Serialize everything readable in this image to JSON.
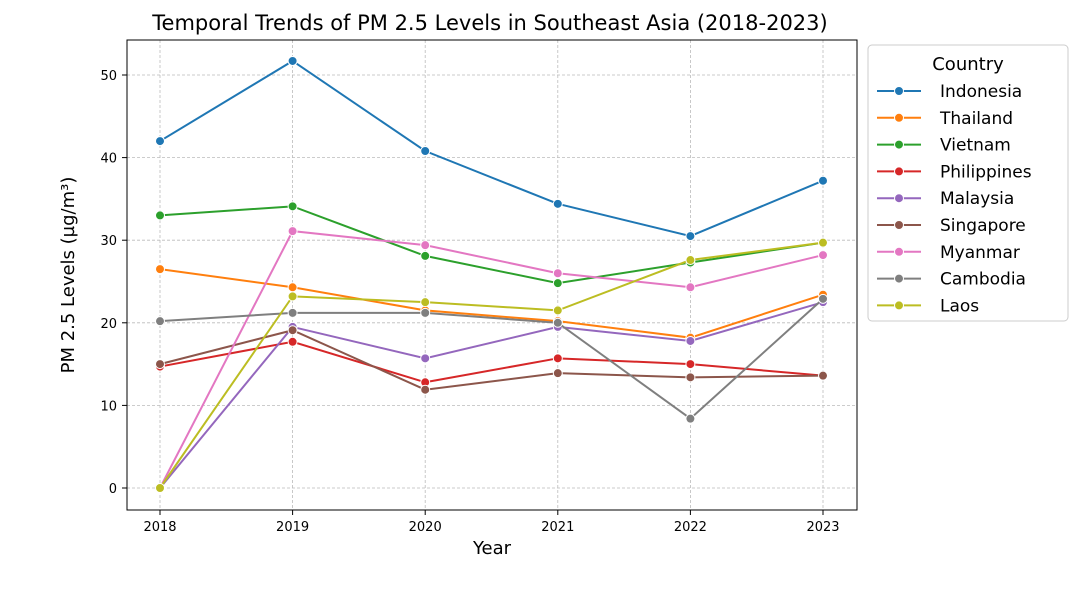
{
  "chart_data": {
    "type": "line",
    "title": "Temporal Trends of PM 2.5 Levels in Southeast Asia (2018-2023)",
    "xlabel": "Year",
    "ylabel": "PM 2.5 Levels (µg/m³)",
    "x": [
      2018,
      2019,
      2020,
      2021,
      2022,
      2023
    ],
    "x_ticks": [
      "2018",
      "2019",
      "2020",
      "2021",
      "2022",
      "2023"
    ],
    "y_ticks": [
      "0",
      "10",
      "20",
      "30",
      "40",
      "50"
    ],
    "ylim": [
      -2.7,
      54.2
    ],
    "grid": true,
    "legend": {
      "title": "Country",
      "placement": "outside-right"
    },
    "series": [
      {
        "name": "Indonesia",
        "color": "#1f77b4",
        "values": [
          42.0,
          51.7,
          40.8,
          34.4,
          30.5,
          37.2
        ]
      },
      {
        "name": "Thailand",
        "color": "#ff7f0e",
        "values": [
          26.5,
          24.3,
          21.5,
          20.2,
          18.2,
          23.4
        ]
      },
      {
        "name": "Vietnam",
        "color": "#2ca02c",
        "values": [
          33.0,
          34.1,
          28.1,
          24.8,
          27.3,
          29.7
        ]
      },
      {
        "name": "Philippines",
        "color": "#d62728",
        "values": [
          14.7,
          17.7,
          12.8,
          15.7,
          15.0,
          13.6
        ]
      },
      {
        "name": "Malaysia",
        "color": "#9467bd",
        "values": [
          0,
          19.5,
          15.7,
          19.5,
          17.8,
          22.5
        ]
      },
      {
        "name": "Singapore",
        "color": "#8c564b",
        "values": [
          15.0,
          19.1,
          11.9,
          13.9,
          13.4,
          13.6
        ]
      },
      {
        "name": "Myanmar",
        "color": "#e377c2",
        "values": [
          0,
          31.1,
          29.4,
          26.0,
          24.3,
          28.2
        ]
      },
      {
        "name": "Cambodia",
        "color": "#7f7f7f",
        "values": [
          20.2,
          21.2,
          21.2,
          20.0,
          8.4,
          22.9
        ]
      },
      {
        "name": "Laos",
        "color": "#bcbd22",
        "values": [
          0,
          23.2,
          22.5,
          21.5,
          27.6,
          29.7
        ]
      }
    ]
  }
}
